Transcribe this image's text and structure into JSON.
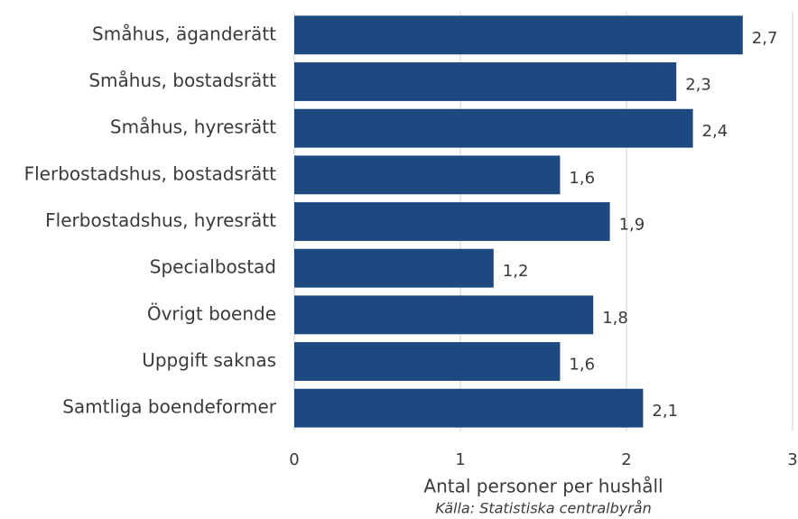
{
  "chart_data": {
    "type": "hbar",
    "categories": [
      "Småhus, äganderätt",
      "Småhus, bostadsrätt",
      "Småhus, hyresrätt",
      "Flerbostadshus, bostadsrätt",
      "Flerbostadshus, hyresrätt",
      "Specialbostad",
      "Övrigt boende",
      "Uppgift saknas",
      "Samtliga boendeformer"
    ],
    "values": [
      2.7,
      2.3,
      2.4,
      1.6,
      1.9,
      1.2,
      1.8,
      1.6,
      2.1
    ],
    "value_labels": [
      "2,7",
      "2,3",
      "2,4",
      "1,6",
      "1,9",
      "1,2",
      "1,8",
      "1,6",
      "2,1"
    ],
    "color": "#1c4a80",
    "xlim": [
      0,
      3
    ],
    "xticks": [
      0,
      1,
      2,
      3
    ],
    "grid": true,
    "x_label": "Antal personer per hushåll",
    "source": "Källa: Statistiska centralbyrån"
  }
}
